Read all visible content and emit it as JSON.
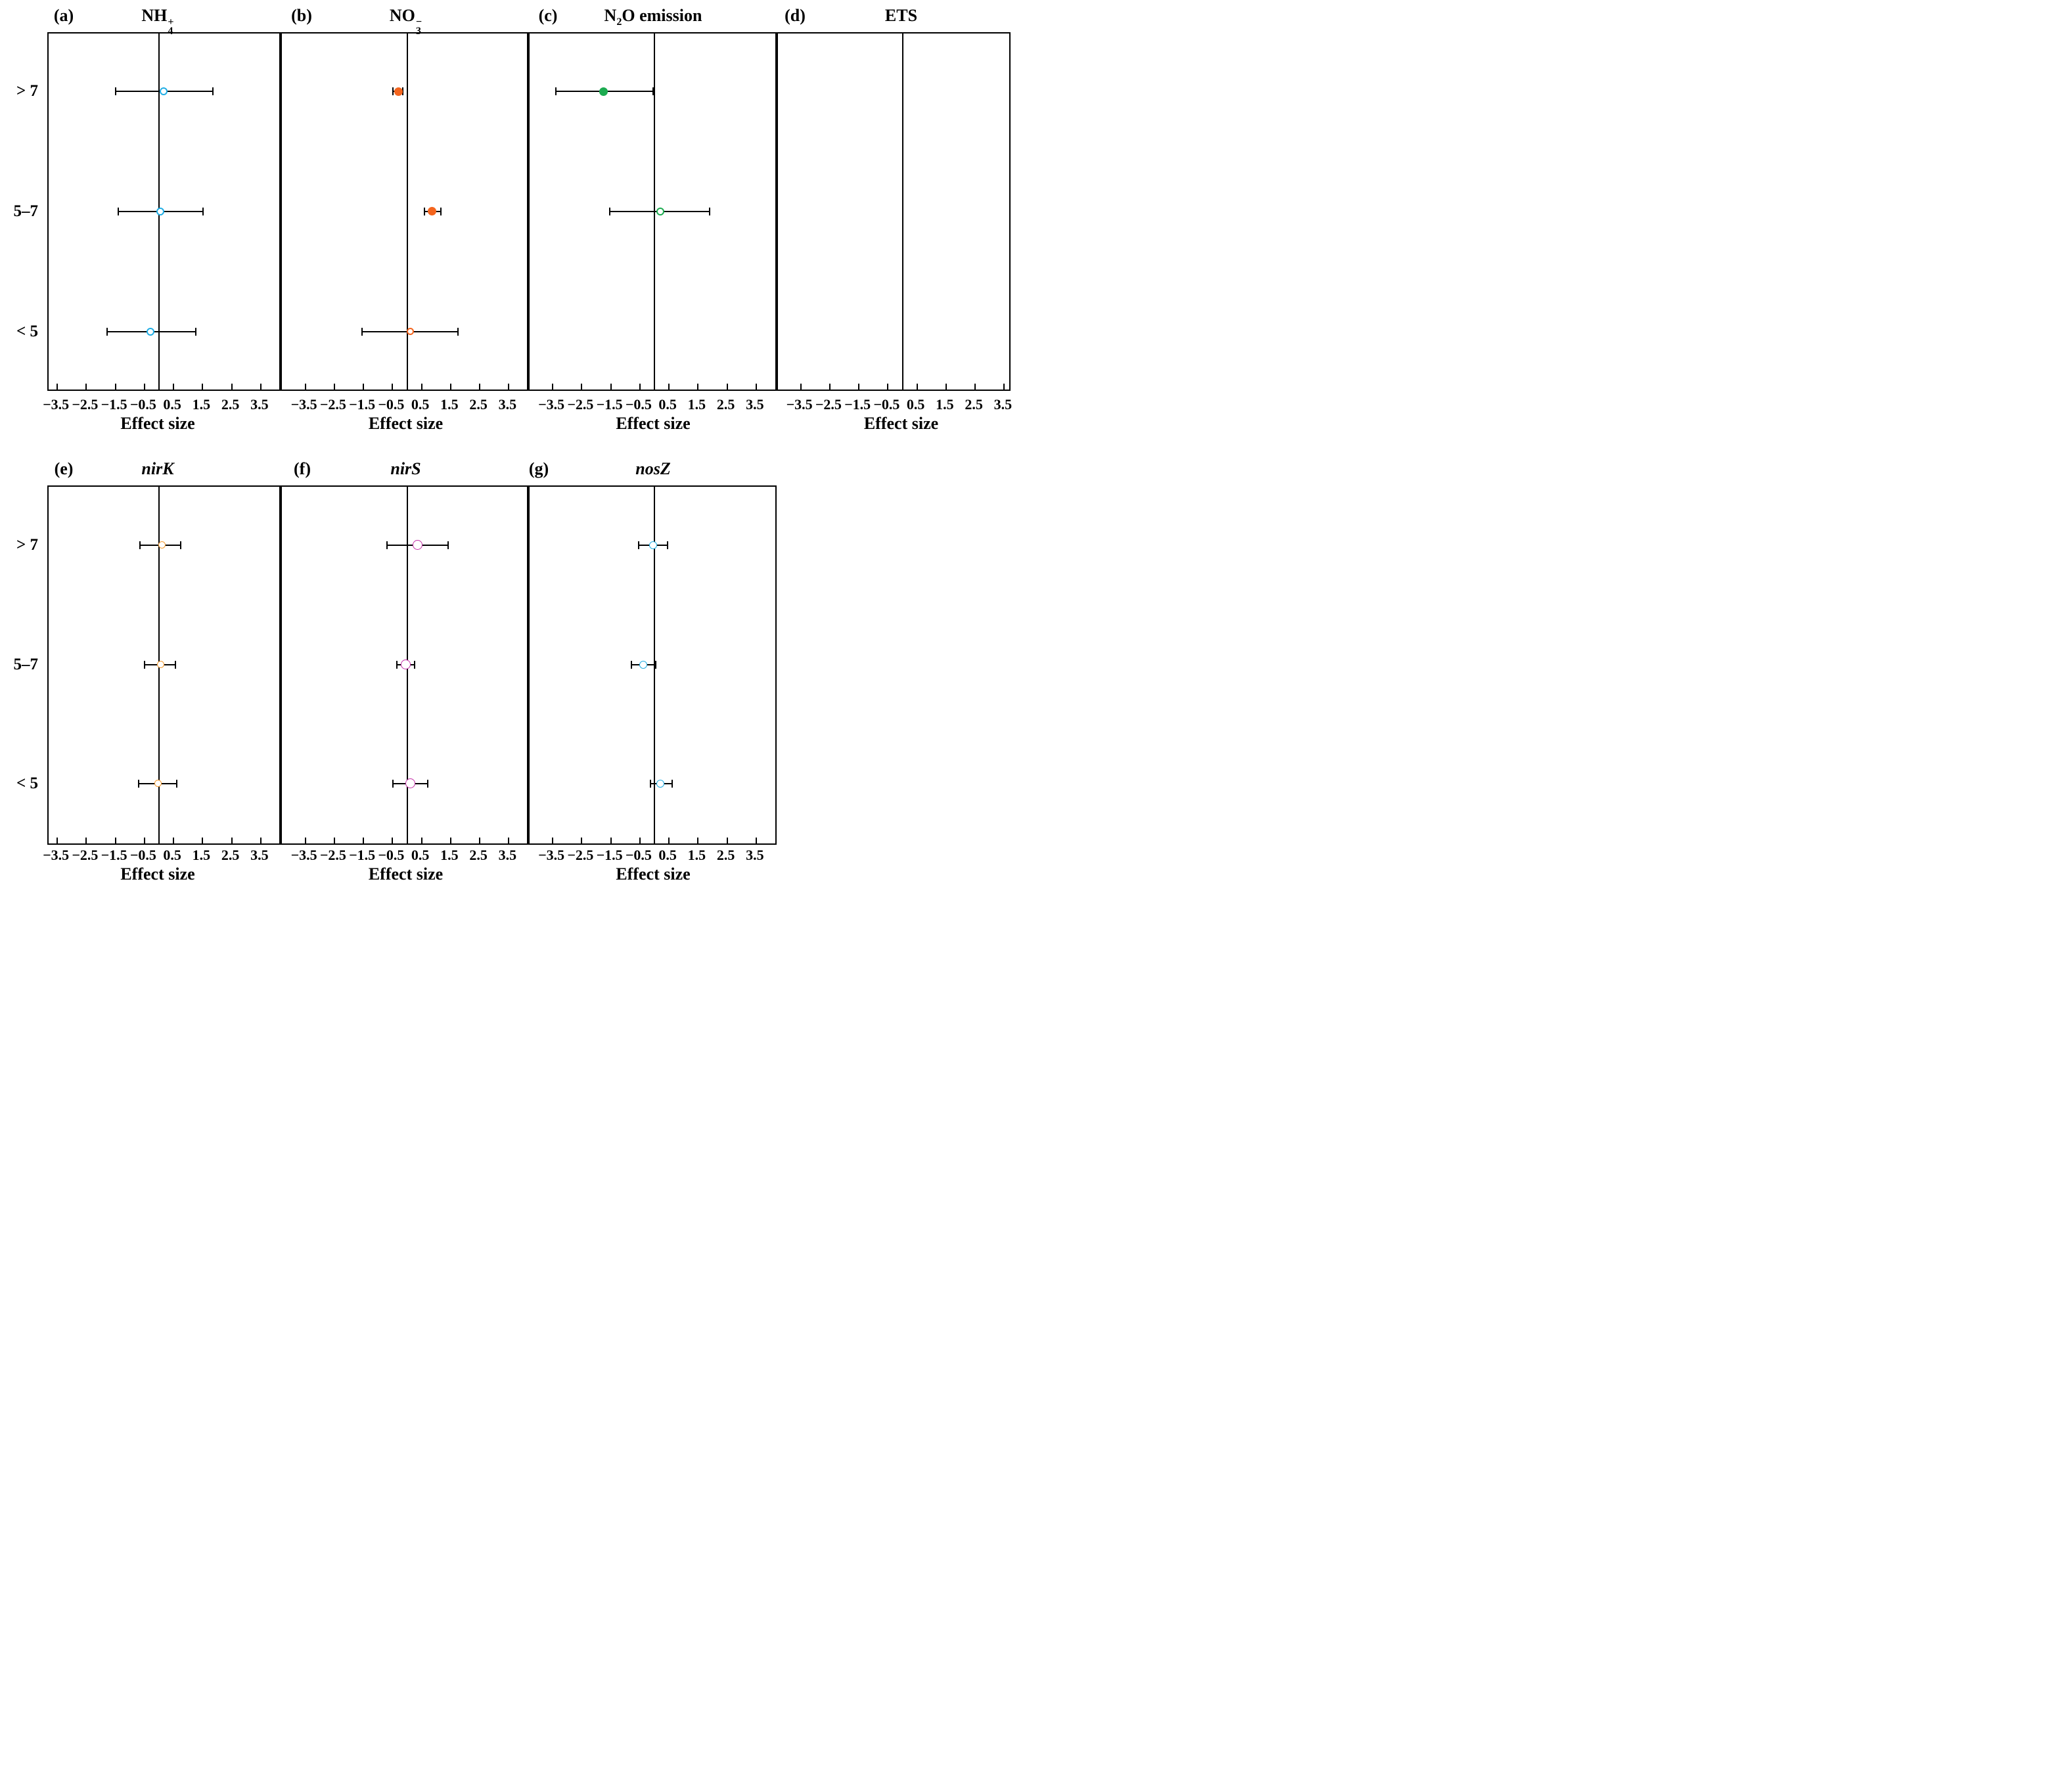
{
  "figure": {
    "xlabel": "Effect size",
    "xtick_labels": [
      "−3.5",
      "−2.5",
      "−1.5",
      "−0.5",
      "0.5",
      "1.5",
      "2.5",
      "3.5"
    ],
    "xtick_values": [
      -3.5,
      -2.5,
      -1.5,
      -0.5,
      0.5,
      1.5,
      2.5,
      3.5
    ],
    "row_labels": [
      "> 7",
      "5–7",
      "< 5"
    ],
    "colors": {
      "cyan": "#1FADE4",
      "orange": "#F4651E",
      "amber": "#F59B2F",
      "green": "#1CAB50",
      "magenta": "#C42FA8",
      "axis": "#000000",
      "background": "#FFFFFF"
    }
  },
  "chart_data": [
    {
      "type": "scatter",
      "panel": "a",
      "letter": "(a)",
      "title": "NH4+",
      "title_parts": [
        [
          "t",
          "NH"
        ],
        [
          "stack",
          "4",
          "+"
        ]
      ],
      "band": "top",
      "col": 0,
      "letter_x": 97,
      "color": "cyan",
      "marker_radius": 6,
      "marker_stroke": 2,
      "xlabel": "Effect size",
      "xlim": [
        -3.8,
        4.2
      ],
      "xticks": [
        -3.5,
        -2.5,
        -1.5,
        -0.5,
        0.5,
        1.5,
        2.5,
        3.5
      ],
      "categories": [
        "> 7",
        "5–7",
        "< 5"
      ],
      "points": [
        {
          "row": 0,
          "category": "> 7",
          "effect": 0.2,
          "ci": [
            -1.45,
            1.9
          ],
          "marker": "open"
        },
        {
          "row": 1,
          "category": "5–7",
          "effect": 0.1,
          "ci": [
            -1.35,
            1.55
          ],
          "marker": "open"
        },
        {
          "row": 2,
          "category": "< 5",
          "effect": -0.25,
          "ci": [
            -1.75,
            1.3
          ],
          "marker": "open"
        }
      ]
    },
    {
      "type": "scatter",
      "panel": "b",
      "letter": "(b)",
      "title": "NO3−",
      "title_parts": [
        [
          "t",
          "NO"
        ],
        [
          "stack",
          "3",
          "−"
        ]
      ],
      "band": "top",
      "col": 1,
      "letter_x": 459,
      "color": "orange",
      "marker_radius": 6.5,
      "marker_stroke": 2,
      "xlabel": "Effect size",
      "xlim": [
        -4.3,
        4.2
      ],
      "xticks": [
        -3.5,
        -2.5,
        -1.5,
        -0.5,
        0.5,
        1.5,
        2.5,
        3.5
      ],
      "categories": [
        "> 7",
        "5–7",
        "< 5"
      ],
      "points": [
        {
          "row": 0,
          "category": "> 7",
          "effect": -0.25,
          "ci": [
            -0.45,
            -0.1
          ],
          "marker": "filled"
        },
        {
          "row": 1,
          "category": "5–7",
          "effect": 0.9,
          "ci": [
            0.65,
            1.2
          ],
          "marker": "filled"
        },
        {
          "row": 2,
          "category": "< 5",
          "effect": 0.15,
          "ci": [
            -1.5,
            1.8
          ],
          "marker": "open",
          "r": 5.5
        }
      ]
    },
    {
      "type": "scatter",
      "panel": "c",
      "letter": "(c)",
      "title": "N2O emission",
      "title_parts": [
        [
          "t",
          "N"
        ],
        [
          "sub",
          "2"
        ],
        [
          "t",
          "O emission"
        ]
      ],
      "band": "top",
      "col": 2,
      "letter_x": 834,
      "color": "green",
      "marker_radius": 6.5,
      "marker_stroke": 2,
      "xlabel": "Effect size",
      "xlim": [
        -4.3,
        4.2
      ],
      "xticks": [
        -3.5,
        -2.5,
        -1.5,
        -0.5,
        0.5,
        1.5,
        2.5,
        3.5
      ],
      "categories": [
        "> 7",
        "5–7",
        "< 5"
      ],
      "points": [
        {
          "row": 0,
          "category": "> 7",
          "effect": -1.7,
          "ci": [
            -3.35,
            0.0
          ],
          "marker": "filled"
        },
        {
          "row": 1,
          "category": "5–7",
          "effect": 0.25,
          "ci": [
            -1.5,
            1.95
          ],
          "marker": "open",
          "r": 6
        }
      ]
    },
    {
      "type": "scatter",
      "panel": "d",
      "letter": "(d)",
      "title": "ETS",
      "title_parts": [
        [
          "t",
          "ETS"
        ]
      ],
      "band": "top",
      "col": 3,
      "letter_x": 1210,
      "color": "cyan",
      "marker_radius": 6,
      "marker_stroke": 2,
      "xlabel": "Effect size",
      "xlim": [
        -4.3,
        3.75
      ],
      "xticks": [
        -3.5,
        -2.5,
        -1.5,
        -0.5,
        0.5,
        1.5,
        2.5,
        3.5
      ],
      "categories": [
        "> 7",
        "5–7",
        "< 5"
      ],
      "points": []
    },
    {
      "type": "scatter",
      "panel": "e",
      "letter": "(e)",
      "title": "nirK",
      "title_parts": [
        [
          "i",
          "nirK"
        ]
      ],
      "band": "bottom",
      "col": 0,
      "letter_x": 97,
      "color": "amber",
      "marker_radius": 5.5,
      "marker_stroke": 1.5,
      "xlabel": "Effect size",
      "xlim": [
        -3.8,
        4.2
      ],
      "xticks": [
        -3.5,
        -2.5,
        -1.5,
        -0.5,
        0.5,
        1.5,
        2.5,
        3.5
      ],
      "categories": [
        "> 7",
        "5–7",
        "< 5"
      ],
      "points": [
        {
          "row": 0,
          "category": "> 7",
          "effect": 0.15,
          "ci": [
            -0.6,
            0.8
          ],
          "marker": "open"
        },
        {
          "row": 1,
          "category": "5–7",
          "effect": 0.1,
          "ci": [
            -0.45,
            0.6
          ],
          "marker": "open"
        },
        {
          "row": 2,
          "category": "< 5",
          "effect": 0.0,
          "ci": [
            -0.65,
            0.65
          ],
          "marker": "open"
        }
      ]
    },
    {
      "type": "scatter",
      "panel": "f",
      "letter": "(f)",
      "title": "nirS",
      "title_parts": [
        [
          "i",
          "nirS"
        ]
      ],
      "band": "bottom",
      "col": 1,
      "letter_x": 460,
      "color": "magenta",
      "marker_radius": 7.5,
      "marker_stroke": 1.5,
      "xlabel": "Effect size",
      "xlim": [
        -4.3,
        4.2
      ],
      "xticks": [
        -3.5,
        -2.5,
        -1.5,
        -0.5,
        0.5,
        1.5,
        2.5,
        3.5
      ],
      "categories": [
        "> 7",
        "5–7",
        "< 5"
      ],
      "points": [
        {
          "row": 0,
          "category": "> 7",
          "effect": 0.4,
          "ci": [
            -0.65,
            1.45
          ],
          "marker": "open"
        },
        {
          "row": 1,
          "category": "5–7",
          "effect": 0.0,
          "ci": [
            -0.3,
            0.3
          ],
          "marker": "open"
        },
        {
          "row": 2,
          "category": "< 5",
          "effect": 0.15,
          "ci": [
            -0.45,
            0.75
          ],
          "marker": "open"
        }
      ]
    },
    {
      "type": "scatter",
      "panel": "g",
      "letter": "(g)",
      "title": "nosZ",
      "title_parts": [
        [
          "i",
          "nosZ"
        ]
      ],
      "band": "bottom",
      "col": 2,
      "letter_x": 820,
      "color": "cyan",
      "marker_radius": 6,
      "marker_stroke": 1.5,
      "xlabel": "Effect size",
      "xlim": [
        -4.3,
        4.2
      ],
      "xticks": [
        -3.5,
        -2.5,
        -1.5,
        -0.5,
        0.5,
        1.5,
        2.5,
        3.5
      ],
      "categories": [
        "> 7",
        "5–7",
        "< 5"
      ],
      "points": [
        {
          "row": 0,
          "category": "> 7",
          "effect": 0.0,
          "ci": [
            -0.5,
            0.5
          ],
          "marker": "open"
        },
        {
          "row": 1,
          "category": "5–7",
          "effect": -0.35,
          "ci": [
            -0.75,
            0.1
          ],
          "marker": "open"
        },
        {
          "row": 2,
          "category": "< 5",
          "effect": 0.25,
          "ci": [
            -0.1,
            0.65
          ],
          "marker": "open"
        }
      ]
    }
  ]
}
